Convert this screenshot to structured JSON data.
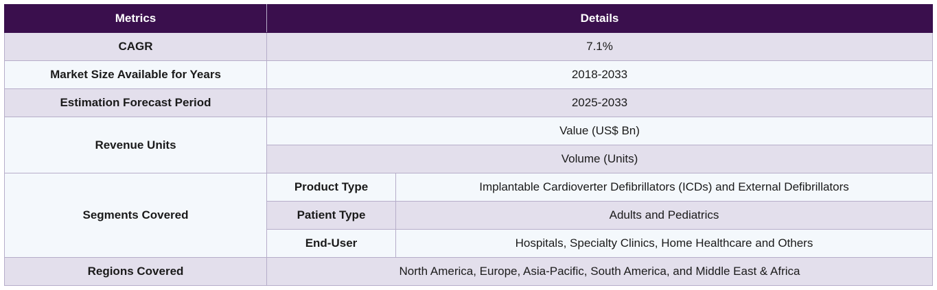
{
  "header": {
    "metrics": "Metrics",
    "details": "Details"
  },
  "rows": {
    "cagr": {
      "label": "CAGR",
      "value": "7.1%"
    },
    "market_size": {
      "label": "Market Size Available for Years",
      "value": "2018-2033"
    },
    "forecast": {
      "label": "Estimation Forecast Period",
      "value": "2025-2033"
    },
    "revenue_units": {
      "label": "Revenue Units",
      "values": [
        "Value (US$ Bn)",
        "Volume (Units)"
      ]
    },
    "segments": {
      "label": "Segments Covered",
      "items": [
        {
          "name": "Product Type",
          "value": "Implantable Cardioverter Defibrillators (ICDs) and External Defibrillators"
        },
        {
          "name": "Patient Type",
          "value": "Adults and Pediatrics"
        },
        {
          "name": "End-User",
          "value": "Hospitals, Specialty Clinics, Home Healthcare and Others"
        }
      ]
    },
    "regions": {
      "label": "Regions Covered",
      "value": "North America, Europe, Asia-Pacific, South America, and Middle East & Africa"
    }
  }
}
